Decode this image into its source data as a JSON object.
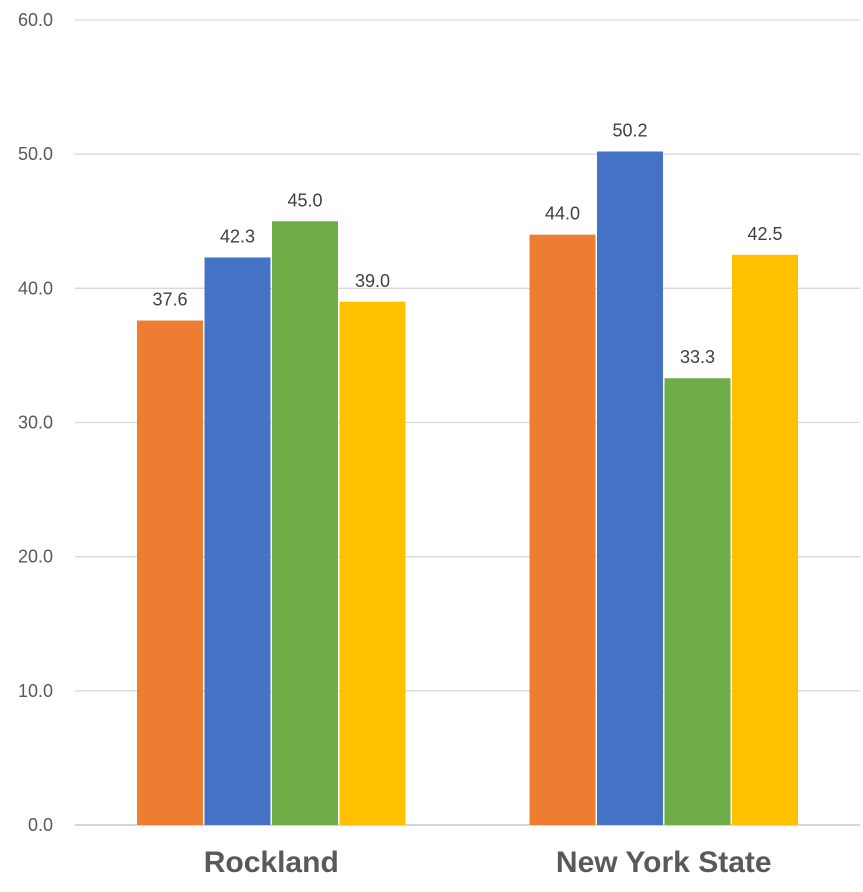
{
  "chart_data": {
    "type": "bar",
    "title": "",
    "xlabel": "",
    "ylabel": "",
    "ylim": [
      0,
      60
    ],
    "y_ticks": [
      "0.0",
      "10.0",
      "20.0",
      "30.0",
      "40.0",
      "50.0",
      "60.0"
    ],
    "y_tick_values": [
      0,
      10,
      20,
      30,
      40,
      50,
      60
    ],
    "grid": true,
    "legend": "none",
    "categories": [
      "Rockland",
      "New York State"
    ],
    "series": [
      {
        "values": [
          37.6,
          44.0
        ],
        "labels": [
          "37.6",
          "44.0"
        ],
        "color": "#ED7D31"
      },
      {
        "values": [
          42.3,
          50.2
        ],
        "labels": [
          "42.3",
          "50.2"
        ],
        "color": "#4472C4"
      },
      {
        "values": [
          45.0,
          33.3
        ],
        "labels": [
          "45.0",
          "33.3"
        ],
        "color": "#70AD47"
      },
      {
        "values": [
          39.0,
          42.5
        ],
        "labels": [
          "39.0",
          "42.5"
        ],
        "color": "#FFC000"
      }
    ]
  }
}
